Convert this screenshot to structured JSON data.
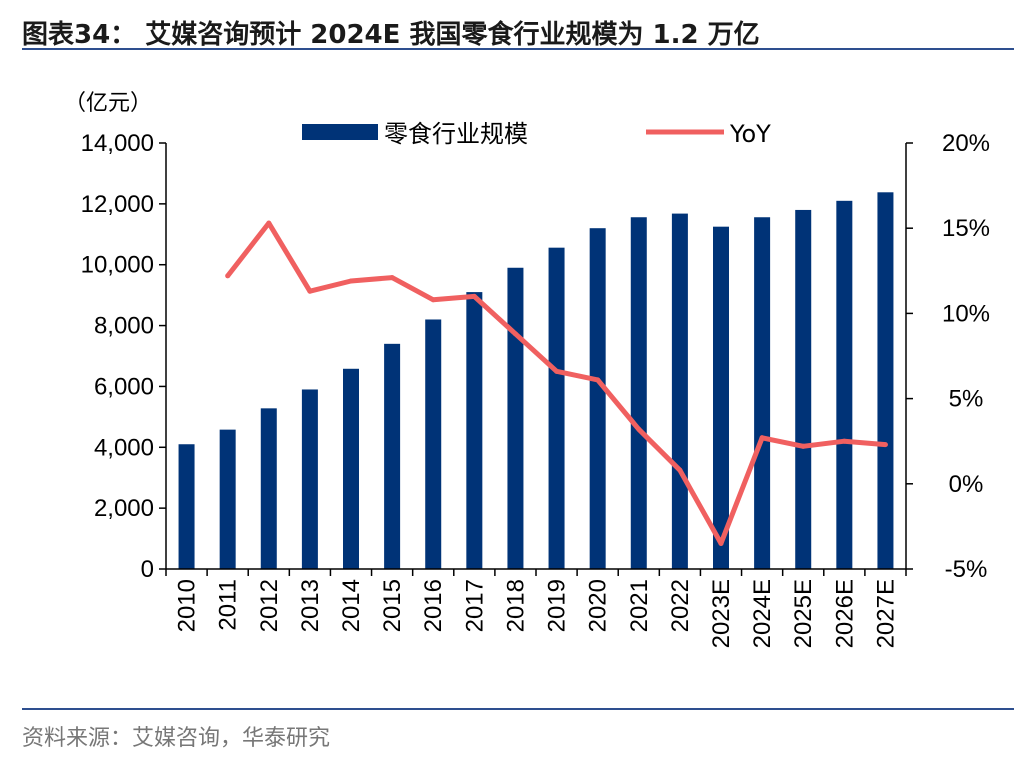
{
  "figure": {
    "title": "图表34： 艾媒咨询预计 2024E 我国零食行业规模为 1.2 万亿",
    "source": "资料来源：艾媒咨询，华泰研究"
  },
  "chart_data": {
    "type": "bar",
    "categories": [
      "2010",
      "2011",
      "2012",
      "2013",
      "2014",
      "2015",
      "2016",
      "2017",
      "2018",
      "2019",
      "2020",
      "2021",
      "2022",
      "2023E",
      "2024E",
      "2025E",
      "2026E",
      "2027E"
    ],
    "y_unit_label": "（亿元）",
    "series": [
      {
        "name": "零食行业规模",
        "type": "bar",
        "axis": "left",
        "color": "#003377",
        "values": [
          4100,
          4580,
          5280,
          5900,
          6580,
          7400,
          8200,
          9100,
          9900,
          10560,
          11200,
          11560,
          11680,
          11250,
          11560,
          11800,
          12100,
          12380
        ]
      },
      {
        "name": "YoY",
        "type": "line",
        "axis": "right",
        "color": "#f06060",
        "values": [
          null,
          12.2,
          15.3,
          11.3,
          11.9,
          12.1,
          10.8,
          11.0,
          8.8,
          6.6,
          6.1,
          3.2,
          0.8,
          -3.5,
          2.7,
          2.2,
          2.5,
          2.3
        ]
      }
    ],
    "y_left": {
      "min": 0,
      "max": 14000,
      "ticks": [
        "0",
        "2,000",
        "4,000",
        "6,000",
        "8,000",
        "10,000",
        "12,000",
        "14,000"
      ]
    },
    "y_right": {
      "min": -5,
      "max": 20,
      "ticks": [
        "-5%",
        "0%",
        "5%",
        "10%",
        "15%",
        "20%"
      ]
    },
    "grid": false,
    "legend_position": "top"
  }
}
